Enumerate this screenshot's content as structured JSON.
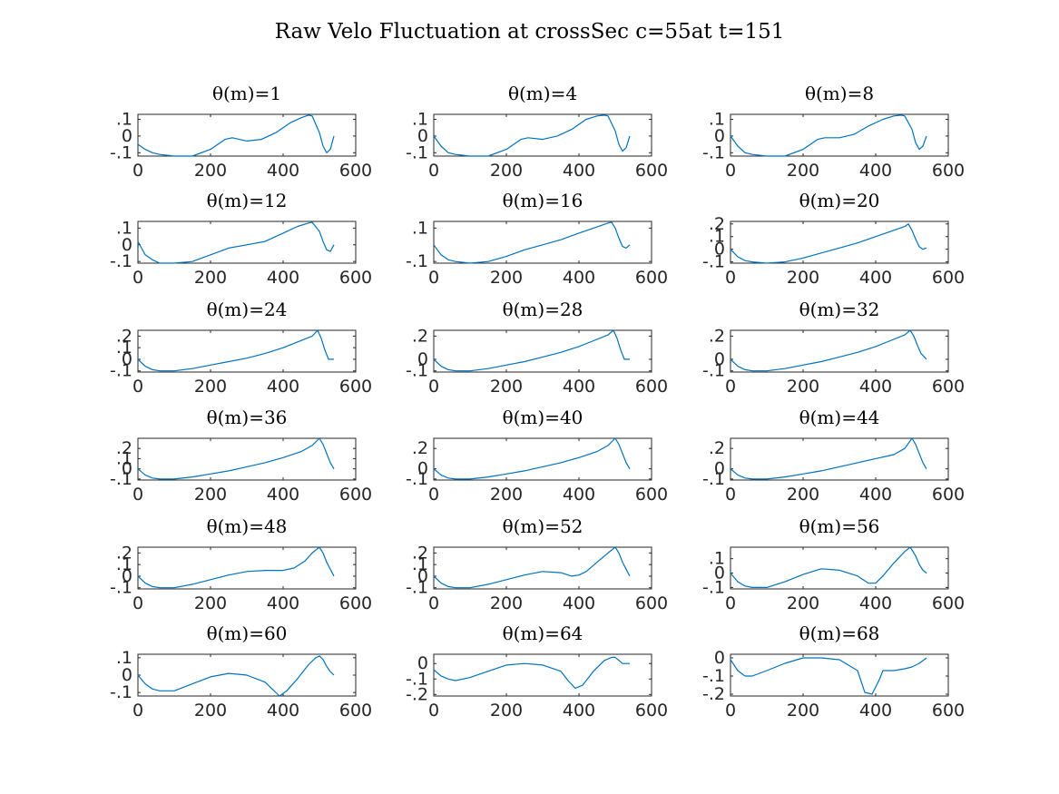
{
  "figure": {
    "title": "Raw Velo Fluctuation at crossSec c=55at t=151"
  },
  "colors": {
    "series": "#0072BD",
    "axes": "#262626",
    "background": "#ffffff"
  },
  "chart_data": [
    {
      "type": "line",
      "title": "θ(m)=1",
      "xlim": [
        0,
        600
      ],
      "ylim": [
        -0.12,
        0.13
      ],
      "xticks": [
        0,
        200,
        400,
        600
      ],
      "yticks": [
        -0.1,
        0,
        0.1
      ],
      "x": [
        0,
        20,
        40,
        60,
        100,
        150,
        200,
        240,
        260,
        300,
        340,
        380,
        420,
        450,
        470,
        480,
        500,
        510,
        520,
        530,
        540
      ],
      "series": [
        {
          "values": [
            -0.05,
            -0.08,
            -0.1,
            -0.11,
            -0.12,
            -0.12,
            -0.08,
            -0.02,
            -0.01,
            -0.03,
            -0.02,
            0.02,
            0.08,
            0.11,
            0.125,
            0.12,
            0.02,
            -0.06,
            -0.1,
            -0.08,
            0
          ]
        }
      ]
    },
    {
      "type": "line",
      "title": "θ(m)=4",
      "xlim": [
        0,
        600
      ],
      "ylim": [
        -0.12,
        0.13
      ],
      "xticks": [
        0,
        200,
        400,
        600
      ],
      "yticks": [
        -0.1,
        0,
        0.1
      ],
      "x": [
        0,
        20,
        40,
        60,
        100,
        150,
        200,
        240,
        260,
        300,
        340,
        380,
        420,
        450,
        470,
        480,
        500,
        510,
        520,
        530,
        540
      ],
      "series": [
        {
          "values": [
            0,
            -0.06,
            -0.1,
            -0.11,
            -0.12,
            -0.12,
            -0.08,
            -0.02,
            -0.01,
            -0.02,
            0,
            0.04,
            0.1,
            0.12,
            0.125,
            0.12,
            0.03,
            -0.05,
            -0.09,
            -0.07,
            0
          ]
        }
      ]
    },
    {
      "type": "line",
      "title": "θ(m)=8",
      "xlim": [
        0,
        600
      ],
      "ylim": [
        -0.12,
        0.13
      ],
      "xticks": [
        0,
        200,
        400,
        600
      ],
      "yticks": [
        -0.1,
        0,
        0.1
      ],
      "x": [
        0,
        20,
        40,
        60,
        100,
        150,
        200,
        240,
        260,
        300,
        340,
        380,
        420,
        450,
        470,
        480,
        500,
        510,
        520,
        530,
        540
      ],
      "series": [
        {
          "values": [
            0,
            -0.06,
            -0.1,
            -0.11,
            -0.12,
            -0.12,
            -0.08,
            -0.02,
            -0.01,
            -0.01,
            0.01,
            0.06,
            0.1,
            0.12,
            0.125,
            0.12,
            0.04,
            -0.04,
            -0.08,
            -0.06,
            0
          ]
        }
      ]
    },
    {
      "type": "line",
      "title": "θ(m)=12",
      "xlim": [
        0,
        600
      ],
      "ylim": [
        -0.11,
        0.14
      ],
      "xticks": [
        0,
        200,
        400,
        600
      ],
      "yticks": [
        -0.1,
        0,
        0.1
      ],
      "x": [
        0,
        20,
        40,
        60,
        100,
        150,
        200,
        250,
        300,
        350,
        400,
        440,
        470,
        480,
        500,
        510,
        520,
        530,
        540
      ],
      "series": [
        {
          "values": [
            0.02,
            -0.06,
            -0.09,
            -0.11,
            -0.11,
            -0.1,
            -0.06,
            -0.02,
            0,
            0.02,
            0.07,
            0.11,
            0.13,
            0.135,
            0.08,
            0.02,
            -0.03,
            -0.04,
            0
          ]
        }
      ]
    },
    {
      "type": "line",
      "title": "θ(m)=16",
      "xlim": [
        0,
        600
      ],
      "ylim": [
        -0.11,
        0.14
      ],
      "xticks": [
        0,
        200,
        400,
        600
      ],
      "yticks": [
        -0.1,
        0.1
      ],
      "x": [
        0,
        20,
        40,
        60,
        100,
        150,
        200,
        250,
        300,
        350,
        400,
        440,
        480,
        490,
        500,
        510,
        520,
        530,
        540
      ],
      "series": [
        {
          "values": [
            0,
            -0.06,
            -0.09,
            -0.1,
            -0.11,
            -0.1,
            -0.07,
            -0.03,
            0,
            0.03,
            0.07,
            0.1,
            0.13,
            0.135,
            0.1,
            0.04,
            -0.01,
            -0.02,
            0
          ]
        }
      ]
    },
    {
      "type": "line",
      "title": "θ(m)=20",
      "xlim": [
        0,
        600
      ],
      "ylim": [
        -0.11,
        0.22
      ],
      "xticks": [
        0,
        200,
        400,
        600
      ],
      "yticks": [
        -0.1,
        0,
        0.1,
        0.2
      ],
      "x": [
        0,
        20,
        40,
        60,
        100,
        150,
        200,
        250,
        300,
        350,
        400,
        440,
        480,
        490,
        500,
        510,
        520,
        530,
        540
      ],
      "series": [
        {
          "values": [
            0,
            -0.06,
            -0.09,
            -0.1,
            -0.11,
            -0.1,
            -0.07,
            -0.03,
            0.01,
            0.05,
            0.1,
            0.14,
            0.18,
            0.2,
            0.15,
            0.08,
            0.02,
            0,
            0.01
          ]
        }
      ]
    },
    {
      "type": "line",
      "title": "θ(m)=24",
      "xlim": [
        0,
        600
      ],
      "ylim": [
        -0.11,
        0.25
      ],
      "xticks": [
        0,
        200,
        400,
        600
      ],
      "yticks": [
        -0.1,
        0,
        0.1,
        0.2
      ],
      "x": [
        0,
        20,
        40,
        60,
        100,
        150,
        200,
        250,
        300,
        350,
        400,
        440,
        480,
        495,
        505,
        515,
        525,
        540
      ],
      "series": [
        {
          "values": [
            0,
            -0.06,
            -0.09,
            -0.1,
            -0.1,
            -0.08,
            -0.05,
            -0.02,
            0.01,
            0.05,
            0.1,
            0.15,
            0.2,
            0.25,
            0.18,
            0.08,
            0,
            0
          ]
        }
      ]
    },
    {
      "type": "line",
      "title": "θ(m)=28",
      "xlim": [
        0,
        600
      ],
      "ylim": [
        -0.11,
        0.25
      ],
      "xticks": [
        0,
        200,
        400,
        600
      ],
      "yticks": [
        -0.1,
        0,
        0.2
      ],
      "x": [
        0,
        20,
        40,
        60,
        100,
        150,
        200,
        250,
        300,
        350,
        400,
        440,
        480,
        495,
        505,
        515,
        525,
        540
      ],
      "series": [
        {
          "values": [
            0,
            -0.06,
            -0.09,
            -0.1,
            -0.1,
            -0.08,
            -0.05,
            -0.02,
            0.02,
            0.06,
            0.11,
            0.16,
            0.21,
            0.25,
            0.18,
            0.08,
            0,
            0
          ]
        }
      ]
    },
    {
      "type": "line",
      "title": "θ(m)=32",
      "xlim": [
        0,
        600
      ],
      "ylim": [
        -0.11,
        0.25
      ],
      "xticks": [
        0,
        200,
        400,
        600
      ],
      "yticks": [
        -0.1,
        0,
        0.2
      ],
      "x": [
        0,
        20,
        40,
        60,
        100,
        150,
        200,
        250,
        300,
        350,
        400,
        440,
        480,
        495,
        505,
        515,
        525,
        540
      ],
      "series": [
        {
          "values": [
            0,
            -0.06,
            -0.09,
            -0.1,
            -0.1,
            -0.08,
            -0.05,
            -0.02,
            0.02,
            0.06,
            0.11,
            0.16,
            0.21,
            0.25,
            0.2,
            0.12,
            0.05,
            0
          ]
        }
      ]
    },
    {
      "type": "line",
      "title": "θ(m)=36",
      "xlim": [
        0,
        600
      ],
      "ylim": [
        -0.11,
        0.3
      ],
      "xticks": [
        0,
        200,
        400,
        600
      ],
      "yticks": [
        -0.1,
        0,
        0.1,
        0.2
      ],
      "x": [
        0,
        20,
        40,
        60,
        100,
        150,
        200,
        250,
        300,
        350,
        400,
        450,
        480,
        500,
        510,
        520,
        530,
        540
      ],
      "series": [
        {
          "values": [
            0,
            -0.06,
            -0.09,
            -0.1,
            -0.1,
            -0.08,
            -0.05,
            -0.02,
            0.02,
            0.06,
            0.11,
            0.17,
            0.23,
            0.3,
            0.24,
            0.15,
            0.06,
            0
          ]
        }
      ]
    },
    {
      "type": "line",
      "title": "θ(m)=40",
      "xlim": [
        0,
        600
      ],
      "ylim": [
        -0.11,
        0.3
      ],
      "xticks": [
        0,
        200,
        400,
        600
      ],
      "yticks": [
        -0.1,
        0,
        0.2
      ],
      "x": [
        0,
        20,
        40,
        60,
        100,
        150,
        200,
        250,
        300,
        350,
        400,
        450,
        480,
        500,
        510,
        520,
        530,
        540
      ],
      "series": [
        {
          "values": [
            0,
            -0.06,
            -0.09,
            -0.1,
            -0.1,
            -0.08,
            -0.05,
            -0.02,
            0.02,
            0.06,
            0.11,
            0.17,
            0.23,
            0.3,
            0.24,
            0.15,
            0.06,
            0
          ]
        }
      ]
    },
    {
      "type": "line",
      "title": "θ(m)=44",
      "xlim": [
        0,
        600
      ],
      "ylim": [
        -0.11,
        0.3
      ],
      "xticks": [
        0,
        200,
        400,
        600
      ],
      "yticks": [
        -0.1,
        0,
        0.2
      ],
      "x": [
        0,
        20,
        40,
        60,
        100,
        150,
        200,
        250,
        300,
        350,
        400,
        450,
        480,
        500,
        510,
        520,
        530,
        540
      ],
      "series": [
        {
          "values": [
            0,
            -0.06,
            -0.09,
            -0.1,
            -0.1,
            -0.08,
            -0.05,
            -0.02,
            0.02,
            0.06,
            0.1,
            0.14,
            0.2,
            0.3,
            0.24,
            0.15,
            0.06,
            0
          ]
        }
      ]
    },
    {
      "type": "line",
      "title": "θ(m)=48",
      "xlim": [
        0,
        600
      ],
      "ylim": [
        -0.11,
        0.25
      ],
      "xticks": [
        0,
        200,
        400,
        600
      ],
      "yticks": [
        -0.1,
        0,
        0.1,
        0.2
      ],
      "x": [
        0,
        20,
        40,
        60,
        100,
        150,
        200,
        250,
        300,
        350,
        400,
        430,
        460,
        480,
        500,
        510,
        520,
        530,
        540
      ],
      "series": [
        {
          "values": [
            0,
            -0.06,
            -0.09,
            -0.1,
            -0.1,
            -0.07,
            -0.03,
            0.01,
            0.04,
            0.05,
            0.05,
            0.07,
            0.13,
            0.2,
            0.25,
            0.2,
            0.12,
            0.06,
            0
          ]
        }
      ]
    },
    {
      "type": "line",
      "title": "θ(m)=52",
      "xlim": [
        0,
        600
      ],
      "ylim": [
        -0.11,
        0.25
      ],
      "xticks": [
        0,
        200,
        400,
        600
      ],
      "yticks": [
        -0.1,
        0,
        0.1,
        0.2
      ],
      "x": [
        0,
        20,
        40,
        60,
        100,
        150,
        200,
        250,
        300,
        350,
        380,
        400,
        420,
        450,
        480,
        500,
        510,
        520,
        530,
        540
      ],
      "series": [
        {
          "values": [
            0,
            -0.06,
            -0.09,
            -0.1,
            -0.1,
            -0.07,
            -0.03,
            0.01,
            0.04,
            0.03,
            0,
            0.01,
            0.04,
            0.12,
            0.2,
            0.25,
            0.2,
            0.12,
            0.06,
            0
          ]
        }
      ]
    },
    {
      "type": "line",
      "title": "θ(m)=56",
      "xlim": [
        0,
        600
      ],
      "ylim": [
        -0.11,
        0.18
      ],
      "xticks": [
        0,
        200,
        400,
        600
      ],
      "yticks": [
        -0.1,
        0,
        0.1
      ],
      "x": [
        0,
        20,
        40,
        60,
        100,
        150,
        200,
        250,
        300,
        350,
        380,
        400,
        420,
        450,
        480,
        495,
        510,
        520,
        530,
        540
      ],
      "series": [
        {
          "values": [
            0,
            -0.06,
            -0.09,
            -0.1,
            -0.1,
            -0.06,
            -0.01,
            0.03,
            0.02,
            -0.02,
            -0.07,
            -0.07,
            -0.02,
            0.07,
            0.15,
            0.18,
            0.12,
            0.06,
            0.02,
            0
          ]
        }
      ]
    },
    {
      "type": "line",
      "title": "θ(m)=60",
      "xlim": [
        0,
        600
      ],
      "ylim": [
        -0.12,
        0.12
      ],
      "xticks": [
        0,
        200,
        400,
        600
      ],
      "yticks": [
        -0.1,
        0,
        0.1
      ],
      "x": [
        0,
        20,
        40,
        60,
        100,
        150,
        200,
        250,
        300,
        350,
        370,
        390,
        410,
        440,
        470,
        490,
        500,
        510,
        520,
        530,
        540
      ],
      "series": [
        {
          "values": [
            0,
            -0.05,
            -0.08,
            -0.09,
            -0.09,
            -0.05,
            -0.01,
            0.01,
            0,
            -0.04,
            -0.08,
            -0.12,
            -0.09,
            -0.02,
            0.06,
            0.1,
            0.11,
            0.09,
            0.05,
            0.02,
            0
          ]
        }
      ]
    },
    {
      "type": "line",
      "title": "θ(m)=64",
      "xlim": [
        0,
        600
      ],
      "ylim": [
        -0.21,
        0.06
      ],
      "xticks": [
        0,
        200,
        400,
        600
      ],
      "yticks": [
        -0.2,
        -0.1,
        0
      ],
      "x": [
        0,
        20,
        40,
        60,
        100,
        150,
        200,
        250,
        300,
        350,
        370,
        390,
        410,
        440,
        470,
        490,
        500,
        510,
        520,
        540
      ],
      "series": [
        {
          "values": [
            -0.04,
            -0.08,
            -0.1,
            -0.11,
            -0.09,
            -0.05,
            -0.01,
            0,
            -0.01,
            -0.05,
            -0.11,
            -0.16,
            -0.14,
            -0.05,
            0.02,
            0.04,
            0.04,
            0.02,
            0,
            0
          ]
        }
      ]
    },
    {
      "type": "line",
      "title": "θ(m)=68",
      "xlim": [
        0,
        600
      ],
      "ylim": [
        -0.21,
        0.02
      ],
      "xticks": [
        0,
        200,
        400,
        600
      ],
      "yticks": [
        -0.2,
        -0.1,
        0
      ],
      "x": [
        0,
        20,
        40,
        60,
        100,
        150,
        200,
        250,
        300,
        350,
        370,
        390,
        410,
        420,
        450,
        480,
        500,
        520,
        540
      ],
      "series": [
        {
          "values": [
            -0.01,
            -0.07,
            -0.1,
            -0.1,
            -0.07,
            -0.03,
            0,
            0,
            -0.01,
            -0.07,
            -0.19,
            -0.2,
            -0.12,
            -0.07,
            -0.07,
            -0.06,
            -0.05,
            -0.03,
            0
          ]
        }
      ]
    }
  ]
}
